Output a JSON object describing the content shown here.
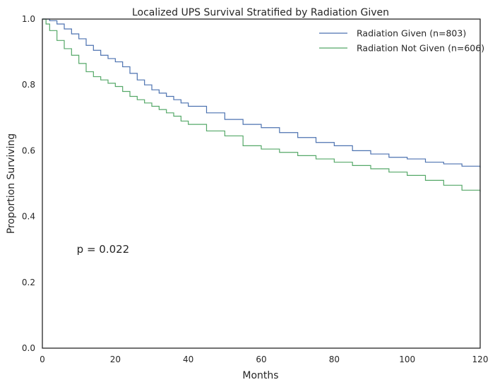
{
  "chart_data": {
    "type": "line",
    "step": true,
    "title": "Localized UPS Survival Stratified by Radiation Given",
    "xlabel": "Months",
    "ylabel": "Proportion Surviving",
    "xlim": [
      0,
      120
    ],
    "ylim": [
      0,
      1.0
    ],
    "xticks": [
      "0",
      "20",
      "40",
      "60",
      "80",
      "100",
      "120"
    ],
    "yticks": [
      "0.0",
      "0.2",
      "0.4",
      "0.6",
      "0.8",
      "1.0"
    ],
    "grid": false,
    "legend_position": "top-right",
    "annotation": "p = 0.022",
    "annotation_at": [
      10,
      0.3
    ],
    "series": [
      {
        "name": "Radiation Given (n=803)",
        "color": "#4c72b0",
        "x": [
          0,
          2,
          4,
          6,
          8,
          10,
          12,
          14,
          16,
          18,
          20,
          22,
          24,
          26,
          28,
          30,
          32,
          34,
          36,
          38,
          40,
          45,
          50,
          55,
          60,
          65,
          70,
          75,
          80,
          85,
          90,
          95,
          100,
          105,
          110,
          115,
          120
        ],
        "y": [
          1.0,
          0.995,
          0.985,
          0.97,
          0.955,
          0.94,
          0.92,
          0.905,
          0.89,
          0.88,
          0.87,
          0.855,
          0.835,
          0.815,
          0.8,
          0.785,
          0.775,
          0.765,
          0.755,
          0.745,
          0.735,
          0.715,
          0.695,
          0.68,
          0.67,
          0.655,
          0.64,
          0.625,
          0.615,
          0.6,
          0.59,
          0.58,
          0.575,
          0.565,
          0.56,
          0.553,
          0.548
        ]
      },
      {
        "name": "Radiation Not Given (n=606)",
        "color": "#55a868",
        "x": [
          0,
          1,
          2,
          4,
          6,
          8,
          10,
          12,
          14,
          16,
          18,
          20,
          22,
          24,
          26,
          28,
          30,
          32,
          34,
          36,
          38,
          40,
          45,
          50,
          55,
          60,
          65,
          70,
          75,
          80,
          85,
          90,
          95,
          100,
          105,
          110,
          115,
          120
        ],
        "y": [
          1.0,
          0.985,
          0.965,
          0.935,
          0.91,
          0.89,
          0.865,
          0.84,
          0.825,
          0.815,
          0.805,
          0.795,
          0.78,
          0.765,
          0.755,
          0.745,
          0.735,
          0.725,
          0.715,
          0.705,
          0.69,
          0.68,
          0.66,
          0.645,
          0.615,
          0.605,
          0.595,
          0.585,
          0.575,
          0.565,
          0.555,
          0.545,
          0.535,
          0.525,
          0.51,
          0.495,
          0.48,
          0.475
        ]
      }
    ]
  }
}
